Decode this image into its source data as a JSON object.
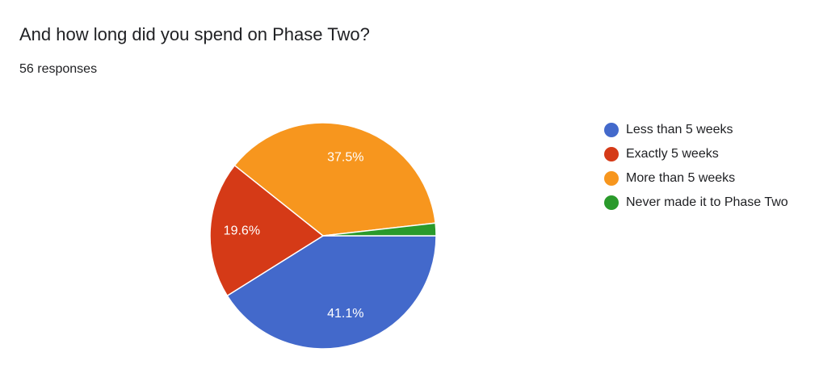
{
  "chart_data": {
    "type": "pie",
    "title": "And how long did you spend on Phase Two?",
    "subtitle": "56 responses",
    "categories": [
      "Less than 5 weeks",
      "Exactly 5 weeks",
      "More than 5 weeks",
      "Never made it to Phase Two"
    ],
    "values": [
      41.1,
      19.6,
      37.5,
      1.8
    ],
    "value_labels": [
      "41.1%",
      "19.6%",
      "37.5%",
      null
    ],
    "colors": [
      "#4369cb",
      "#d53a17",
      "#f7961e",
      "#2a9a2b"
    ]
  }
}
